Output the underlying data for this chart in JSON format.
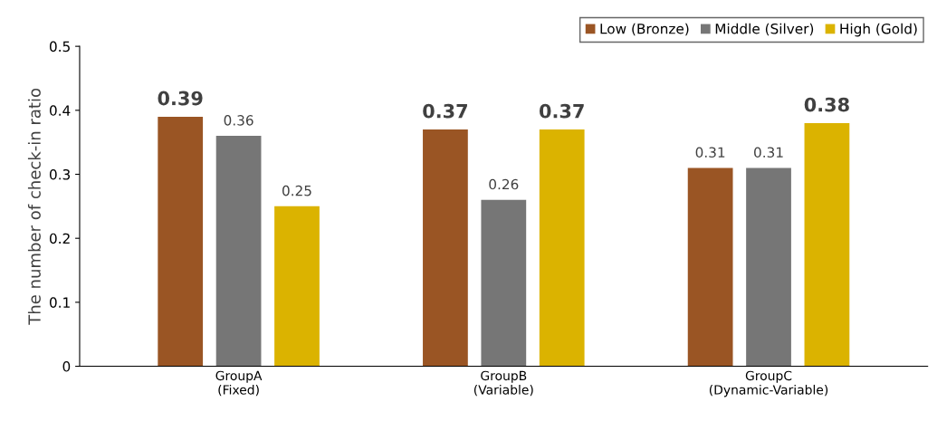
{
  "chart_data": {
    "type": "bar",
    "ylabel": "The number of check-in ratio",
    "categories": [
      "GroupA\n(Fixed)",
      "GroupB\n(Variable)",
      "GroupC\n(Dynamic-Variable)"
    ],
    "series": [
      {
        "name": "Low (Bronze)",
        "color": "#9a5524",
        "values": [
          0.39,
          0.37,
          0.31
        ]
      },
      {
        "name": "Middle (Silver)",
        "color": "#767676",
        "values": [
          0.36,
          0.26,
          0.31
        ]
      },
      {
        "name": "High (Gold)",
        "color": "#dbb300",
        "values": [
          0.25,
          0.37,
          0.38
        ]
      }
    ],
    "ylim": [
      0,
      0.5
    ],
    "yticks": [
      0,
      0.1,
      0.2,
      0.3,
      0.4,
      0.5
    ],
    "grid": false,
    "legend": "top right",
    "data_labels": true
  }
}
